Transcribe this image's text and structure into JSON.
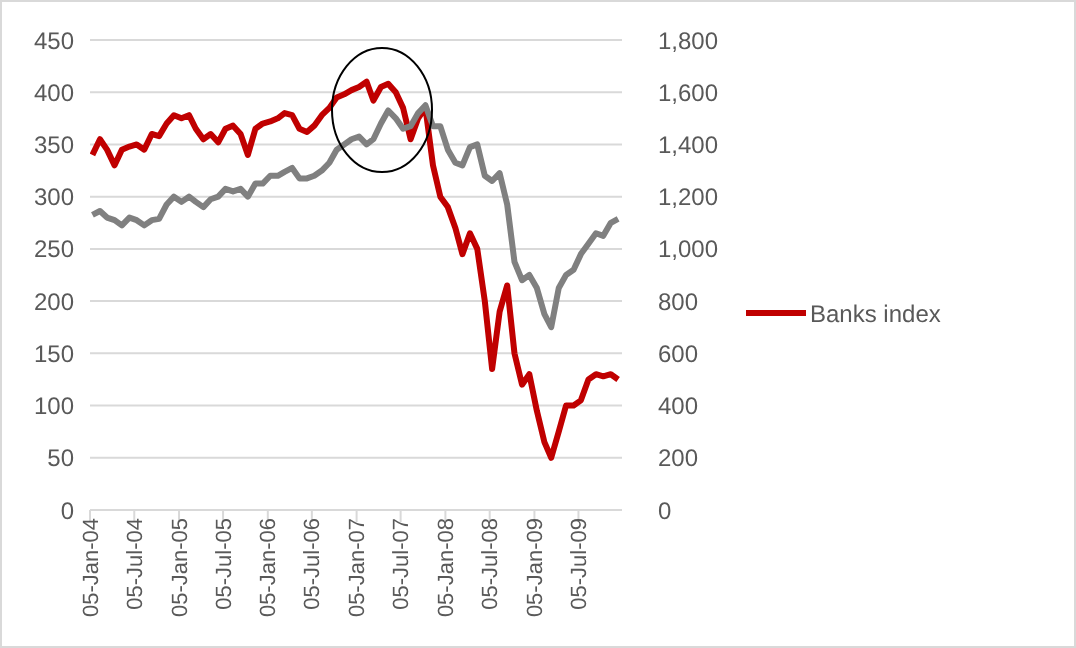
{
  "chart_data": {
    "type": "line",
    "x": [
      "2004-01-15",
      "2004-02-15",
      "2004-03-15",
      "2004-04-15",
      "2004-05-15",
      "2004-06-15",
      "2004-07-15",
      "2004-08-15",
      "2004-09-15",
      "2004-10-15",
      "2004-11-15",
      "2004-12-15",
      "2005-01-15",
      "2005-02-15",
      "2005-03-15",
      "2005-04-15",
      "2005-05-15",
      "2005-06-15",
      "2005-07-15",
      "2005-08-15",
      "2005-09-15",
      "2005-10-15",
      "2005-11-15",
      "2005-12-15",
      "2006-01-15",
      "2006-02-15",
      "2006-03-15",
      "2006-04-15",
      "2006-05-15",
      "2006-06-15",
      "2006-07-15",
      "2006-08-15",
      "2006-09-15",
      "2006-10-15",
      "2006-11-15",
      "2006-12-15",
      "2007-01-15",
      "2007-02-15",
      "2007-03-15",
      "2007-04-15",
      "2007-05-15",
      "2007-06-15",
      "2007-07-15",
      "2007-08-15",
      "2007-09-15",
      "2007-10-15",
      "2007-11-15",
      "2007-12-15",
      "2008-01-15",
      "2008-02-15",
      "2008-03-15",
      "2008-04-15",
      "2008-05-15",
      "2008-06-15",
      "2008-07-15",
      "2008-08-15",
      "2008-09-15",
      "2008-10-15",
      "2008-11-15",
      "2008-12-15",
      "2009-01-15",
      "2009-02-15",
      "2009-03-15",
      "2009-04-15",
      "2009-05-15",
      "2009-06-15",
      "2009-07-15",
      "2009-08-15",
      "2009-09-15",
      "2009-10-15",
      "2009-11-15",
      "2009-12-15"
    ],
    "series": [
      {
        "name": "Banks index",
        "color": "#c00000",
        "values": [
          340,
          355,
          345,
          330,
          345,
          348,
          350,
          345,
          360,
          358,
          370,
          378,
          375,
          378,
          365,
          355,
          360,
          352,
          365,
          368,
          360,
          340,
          365,
          370,
          372,
          375,
          380,
          378,
          365,
          362,
          368,
          378,
          385,
          395,
          398,
          402,
          405,
          410,
          392,
          405,
          408,
          400,
          385,
          355,
          375,
          385,
          330,
          300,
          290,
          270,
          245,
          265,
          250,
          200,
          135,
          190,
          215,
          150,
          120,
          130,
          95,
          65,
          50,
          75,
          100,
          100,
          105,
          125,
          130,
          128,
          130,
          125
        ]
      },
      {
        "color": "#808080",
        "axis": "y2",
        "values": [
          1130,
          1145,
          1120,
          1110,
          1090,
          1120,
          1110,
          1090,
          1110,
          1115,
          1170,
          1200,
          1180,
          1200,
          1180,
          1160,
          1190,
          1200,
          1230,
          1220,
          1230,
          1200,
          1250,
          1250,
          1280,
          1280,
          1295,
          1310,
          1270,
          1270,
          1280,
          1300,
          1330,
          1380,
          1400,
          1420,
          1430,
          1400,
          1420,
          1480,
          1530,
          1500,
          1460,
          1470,
          1520,
          1550,
          1470,
          1470,
          1380,
          1330,
          1320,
          1390,
          1400,
          1280,
          1260,
          1290,
          1170,
          950,
          880,
          900,
          850,
          750,
          700,
          850,
          900,
          920,
          980,
          1020,
          1060,
          1050,
          1100,
          1115
        ]
      }
    ],
    "xlim": [
      "2004-01-05",
      "2009-12-31"
    ],
    "xticks": [
      {
        "value": "2004-01-05",
        "label": "05-Jan-04"
      },
      {
        "value": "2004-07-05",
        "label": "05-Jul-04"
      },
      {
        "value": "2005-01-05",
        "label": "05-Jan-05"
      },
      {
        "value": "2005-07-05",
        "label": "05-Jul-05"
      },
      {
        "value": "2006-01-05",
        "label": "05-Jan-06"
      },
      {
        "value": "2006-07-05",
        "label": "05-Jul-06"
      },
      {
        "value": "2007-01-05",
        "label": "05-Jan-07"
      },
      {
        "value": "2007-07-05",
        "label": "05-Jul-07"
      },
      {
        "value": "2008-01-05",
        "label": "05-Jan-08"
      },
      {
        "value": "2008-07-05",
        "label": "05-Jul-08"
      },
      {
        "value": "2009-01-05",
        "label": "05-Jan-09"
      },
      {
        "value": "2009-07-05",
        "label": "05-Jul-09"
      }
    ],
    "ylim": [
      0,
      450
    ],
    "yticks": [
      0,
      50,
      100,
      150,
      200,
      250,
      300,
      350,
      400,
      450
    ],
    "y2lim": [
      0,
      1800
    ],
    "y2ticks": [
      {
        "value": 0,
        "label": "0"
      },
      {
        "value": 200,
        "label": "200"
      },
      {
        "value": 400,
        "label": "400"
      },
      {
        "value": 600,
        "label": "600"
      },
      {
        "value": 800,
        "label": "800"
      },
      {
        "value": 1000,
        "label": "1,000"
      },
      {
        "value": 1200,
        "label": "1,200"
      },
      {
        "value": 1400,
        "label": "1,400"
      },
      {
        "value": 1600,
        "label": "1,600"
      },
      {
        "value": 1800,
        "label": "1,800"
      }
    ],
    "grid": "y",
    "legend": "right",
    "marker": "none",
    "line_style": "solid"
  }
}
